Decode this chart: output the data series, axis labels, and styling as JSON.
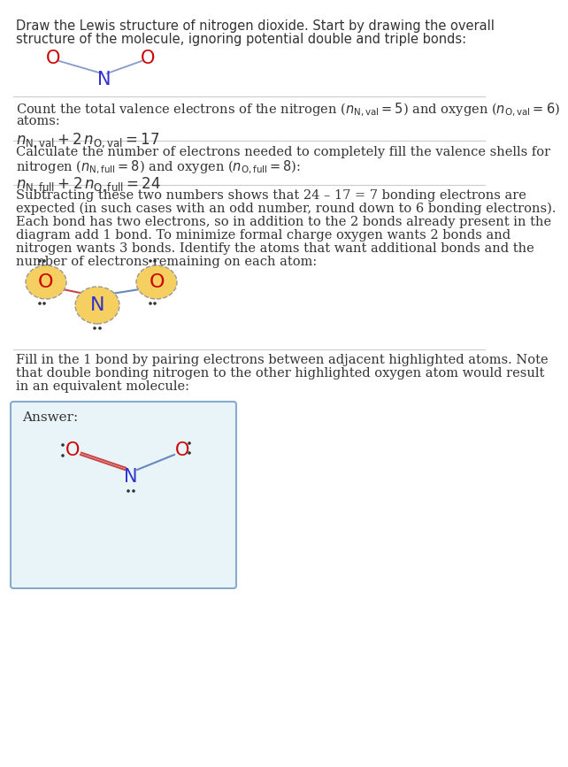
{
  "bg_color": "#ffffff",
  "text_color": "#333333",
  "O_color": "#cc0000",
  "N_color_diagram1": "#3333cc",
  "N_color_answer": "#3333cc",
  "bond_color_plain": "#9999bb",
  "bond_color_red": "#cc4444",
  "bond_color_blue": "#6688bb",
  "highlight_fill": "#f5d060",
  "highlight_edge": "#aaaaaa",
  "answer_bg": "#e8f4f8",
  "answer_border": "#99bbcc",
  "divider_color": "#cccccc",
  "font_size_body": 10.5,
  "font_size_atom": 15,
  "font_size_atom_hl": 16,
  "section1_title1": "Draw the Lewis structure of nitrogen dioxide. Start by drawing the overall",
  "section1_title2": "structure of the molecule, ignoring potential double and triple bonds:",
  "sec2_line1": "Count the total valence electrons of the nitrogen (",
  "sec2_line2": "atoms:",
  "sec2_eq": "$n_{\\mathrm{N,val}} + 2\\,n_{\\mathrm{O,val}} = 17$",
  "sec3_line1": "Calculate the number of electrons needed to completely fill the valence shells for",
  "sec3_line2": "nitrogen (",
  "sec3_eq": "$n_{\\mathrm{N,full}} + 2\\,n_{\\mathrm{O,full}} = 24$",
  "sec4_lines": [
    "Subtracting these two numbers shows that 24 – 17 = 7 bonding electrons are",
    "expected (in such cases with an odd number, round down to 6 bonding electrons).",
    "Each bond has two electrons, so in addition to the 2 bonds already present in the",
    "diagram add 1 bond. To minimize formal charge oxygen wants 2 bonds and",
    "nitrogen wants 3 bonds. Identify the atoms that want additional bonds and the",
    "number of electrons remaining on each atom:"
  ],
  "sec5_lines": [
    "Fill in the 1 bond by pairing electrons between adjacent highlighted atoms. Note",
    "that double bonding nitrogen to the other highlighted oxygen atom would result",
    "in an equivalent molecule:"
  ],
  "answer_label": "Answer:"
}
